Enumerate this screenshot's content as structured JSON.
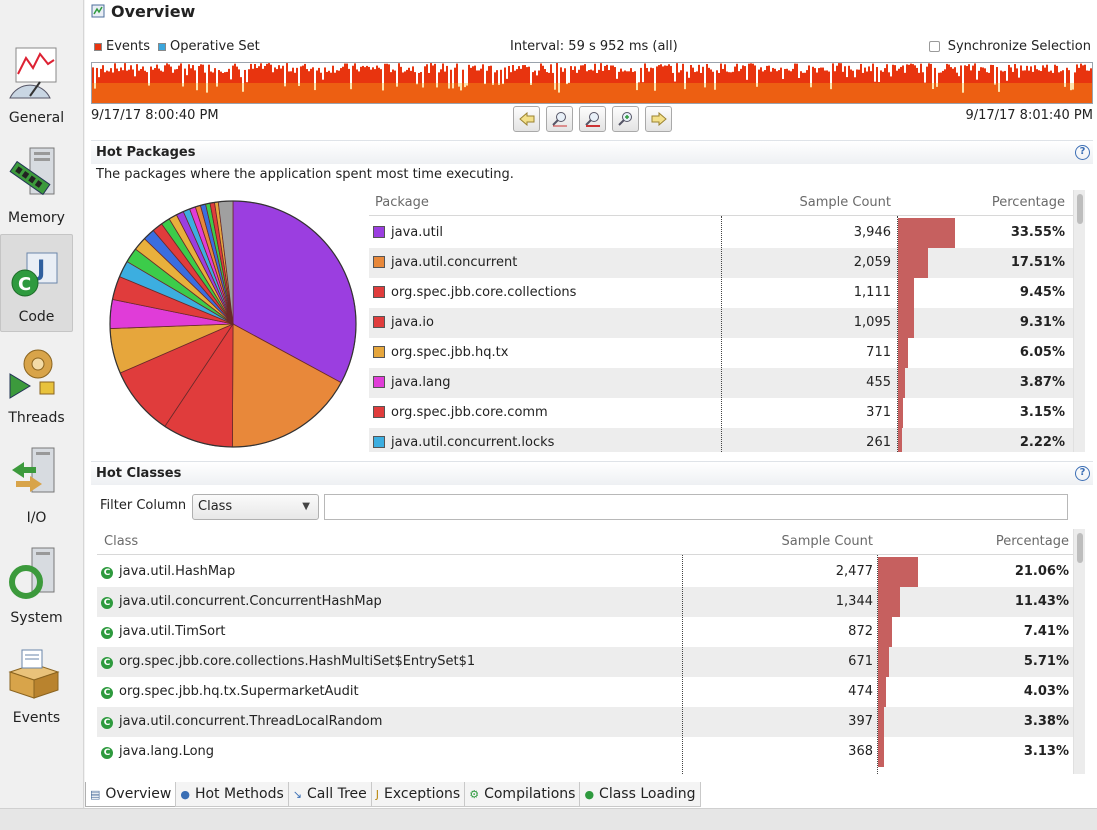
{
  "nav": [
    {
      "label": "General",
      "icon": "gauge-icon"
    },
    {
      "label": "Memory",
      "icon": "memory-icon"
    },
    {
      "label": "Code",
      "icon": "code-icon",
      "selected": true
    },
    {
      "label": "Threads",
      "icon": "threads-icon"
    },
    {
      "label": "I/O",
      "icon": "io-icon"
    },
    {
      "label": "System",
      "icon": "system-icon"
    },
    {
      "label": "Events",
      "icon": "events-icon"
    }
  ],
  "page": {
    "title": "Overview"
  },
  "timeline": {
    "legend_events": "Events",
    "legend_operative": "Operative Set",
    "interval": "Interval: 59 s 952 ms (all)",
    "sync_label": "Synchronize Selection",
    "start": "9/17/17 8:00:40 PM",
    "end": "9/17/17 8:01:40 PM",
    "colors": {
      "events": "#e8340f",
      "operative": "#3ba6dc"
    }
  },
  "hot_packages": {
    "title": "Hot Packages",
    "description": "The packages where the application spent most time executing.",
    "columns": {
      "name": "Package",
      "count": "Sample Count",
      "pct": "Percentage"
    },
    "rows": [
      {
        "name": "java.util",
        "count": "3,946",
        "pct": "33.55%",
        "value": 33.55,
        "color": "#9b3ee0"
      },
      {
        "name": "java.util.concurrent",
        "count": "2,059",
        "pct": "17.51%",
        "value": 17.51,
        "color": "#e8883a"
      },
      {
        "name": "org.spec.jbb.core.collections",
        "count": "1,111",
        "pct": "9.45%",
        "value": 9.45,
        "color": "#e03c3c"
      },
      {
        "name": "java.io",
        "count": "1,095",
        "pct": "9.31%",
        "value": 9.31,
        "color": "#e03c3c"
      },
      {
        "name": "org.spec.jbb.hq.tx",
        "count": "711",
        "pct": "6.05%",
        "value": 6.05,
        "color": "#e6a63c"
      },
      {
        "name": "java.lang",
        "count": "455",
        "pct": "3.87%",
        "value": 3.87,
        "color": "#e03cd8"
      },
      {
        "name": "org.spec.jbb.core.comm",
        "count": "371",
        "pct": "3.15%",
        "value": 3.15,
        "color": "#e03c3c"
      },
      {
        "name": "java.util.concurrent.locks",
        "count": "261",
        "pct": "2.22%",
        "value": 2.22,
        "color": "#3caee0"
      }
    ]
  },
  "pie_extra": [
    {
      "value": 2.0,
      "color": "#3ccc4a"
    },
    {
      "value": 1.8,
      "color": "#e8b03c"
    },
    {
      "value": 1.6,
      "color": "#3a6ee0"
    },
    {
      "value": 1.4,
      "color": "#e03c3c"
    },
    {
      "value": 1.2,
      "color": "#3ccc4a"
    },
    {
      "value": 1.1,
      "color": "#e8b03c"
    },
    {
      "value": 1.0,
      "color": "#9b3ee0"
    },
    {
      "value": 0.9,
      "color": "#3caee0"
    },
    {
      "value": 0.8,
      "color": "#e03cd8"
    },
    {
      "value": 0.7,
      "color": "#e8883a"
    },
    {
      "value": 0.7,
      "color": "#3a6ee0"
    },
    {
      "value": 0.6,
      "color": "#3ccc4a"
    },
    {
      "value": 0.6,
      "color": "#e03c3c"
    },
    {
      "value": 0.5,
      "color": "#e6a63c"
    },
    {
      "value": 1.95,
      "color": "#a0a0a0"
    }
  ],
  "hot_classes": {
    "title": "Hot Classes",
    "filter_label": "Filter Column",
    "filter_value": "Class",
    "filter_text": "",
    "columns": {
      "name": "Class",
      "count": "Sample Count",
      "pct": "Percentage"
    },
    "rows": [
      {
        "name": "java.util.HashMap",
        "count": "2,477",
        "pct": "21.06%",
        "value": 21.06
      },
      {
        "name": "java.util.concurrent.ConcurrentHashMap",
        "count": "1,344",
        "pct": "11.43%",
        "value": 11.43
      },
      {
        "name": "java.util.TimSort",
        "count": "872",
        "pct": "7.41%",
        "value": 7.41
      },
      {
        "name": "org.spec.jbb.core.collections.HashMultiSet$EntrySet$1",
        "count": "671",
        "pct": "5.71%",
        "value": 5.71
      },
      {
        "name": "org.spec.jbb.hq.tx.SupermarketAudit",
        "count": "474",
        "pct": "4.03%",
        "value": 4.03
      },
      {
        "name": "java.util.concurrent.ThreadLocalRandom",
        "count": "397",
        "pct": "3.38%",
        "value": 3.38
      },
      {
        "name": "java.lang.Long",
        "count": "368",
        "pct": "3.13%",
        "value": 3.13
      }
    ]
  },
  "tabs": [
    {
      "label": "Overview",
      "icon": "overview-icon",
      "active": true
    },
    {
      "label": "Hot Methods",
      "icon": "method-icon"
    },
    {
      "label": "Call Tree",
      "icon": "call-tree-icon"
    },
    {
      "label": "Exceptions",
      "icon": "exception-icon"
    },
    {
      "label": "Compilations",
      "icon": "compilation-icon"
    },
    {
      "label": "Class Loading",
      "icon": "class-loading-icon"
    }
  ]
}
